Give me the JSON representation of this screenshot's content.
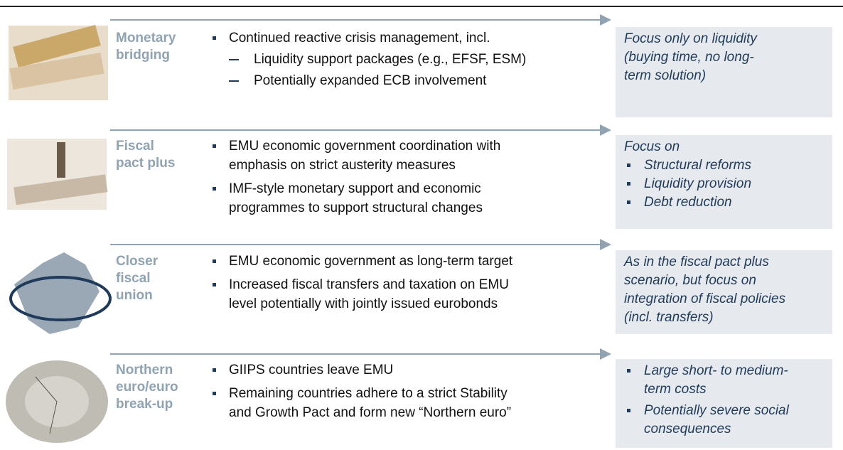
{
  "rows": [
    {
      "label": [
        "Monetary",
        "bridging"
      ],
      "bullets": [
        {
          "lines": [
            "Continued reactive crisis management, incl."
          ],
          "sub": [
            "Liquidity support packages (e.g., EFSF, ESM)",
            "Potentially expanded ECB involvement"
          ]
        }
      ],
      "outcome": {
        "lines": [
          "Focus only on liquidity",
          "(buying time, no long-",
          "term solution)"
        ]
      }
    },
    {
      "label": [
        "Fiscal",
        "pact plus"
      ],
      "bullets": [
        {
          "lines": [
            "EMU economic government coordination with",
            "emphasis on strict austerity measures"
          ]
        },
        {
          "lines": [
            "IMF-style monetary support and economic",
            "programmes to support structural changes"
          ]
        }
      ],
      "outcome": {
        "lines": [
          "Focus on"
        ],
        "items": [
          [
            "Structural reforms"
          ],
          [
            "Liquidity provision"
          ],
          [
            "Debt reduction"
          ]
        ]
      }
    },
    {
      "label": [
        "Closer",
        "fiscal",
        "union"
      ],
      "bullets": [
        {
          "lines": [
            "EMU economic government as long-term target"
          ]
        },
        {
          "lines": [
            "Increased fiscal transfers and taxation on EMU",
            "level potentially with jointly issued eurobonds"
          ]
        }
      ],
      "outcome": {
        "lines": [
          "As in the fiscal pact plus",
          "scenario, but focus on",
          "integration of fiscal policies",
          "(incl. transfers)"
        ]
      }
    },
    {
      "label": [
        "Northern",
        "euro/euro",
        "break-up"
      ],
      "bullets": [
        {
          "lines": [
            "GIIPS countries leave EMU"
          ]
        },
        {
          "lines": [
            "Remaining countries adhere to a strict Stability",
            "and Growth Pact and form new “Northern euro”"
          ]
        }
      ],
      "outcome": {
        "items": [
          [
            "Large short- to medium-",
            "term costs"
          ],
          [
            "Potentially severe social",
            "consequences"
          ]
        ]
      }
    }
  ]
}
